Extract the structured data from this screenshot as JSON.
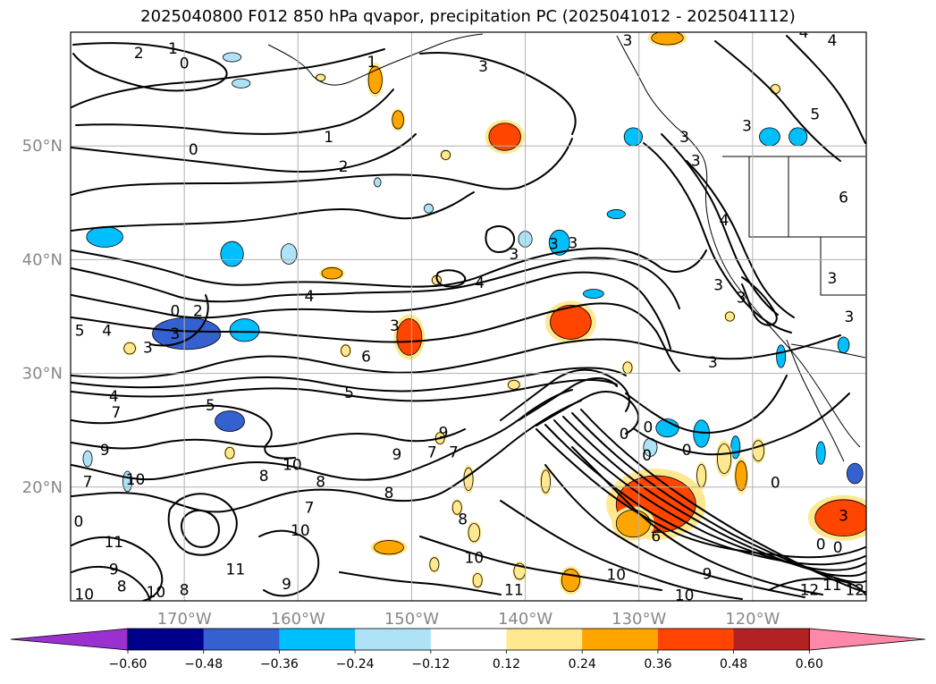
{
  "title": "2025040800 F012 850 hPa qvapor, precipitation PC (2025041012 - 2025041112)",
  "chart_data": {
    "type": "map-contour",
    "title": "2025040800 F012 850 hPa qvapor, precipitation PC (2025041012 - 2025041112)",
    "variables": [
      "850 hPa qvapor",
      "precipitation PC"
    ],
    "lon_range": [
      180,
      110
    ],
    "lat_range": [
      10,
      60
    ],
    "grid": true,
    "x_ticks": [
      "170°W",
      "160°W",
      "150°W",
      "140°W",
      "130°W",
      "120°W"
    ],
    "x_tick_values": [
      -170,
      -160,
      -150,
      -140,
      -130,
      -120
    ],
    "y_ticks": [
      "20°N",
      "30°N",
      "40°N",
      "50°N"
    ],
    "y_tick_values": [
      20,
      30,
      40,
      50
    ],
    "colorbar": {
      "orientation": "horizontal",
      "extend": "both",
      "levels": [
        -0.6,
        -0.48,
        -0.36,
        -0.24,
        -0.12,
        0.12,
        0.24,
        0.36,
        0.48,
        0.6
      ],
      "tick_labels": [
        "−0.60",
        "−0.48",
        "−0.36",
        "−0.24",
        "−0.12",
        "0.12",
        "0.24",
        "0.36",
        "0.48",
        "0.60"
      ],
      "colors": [
        "#9b30d0",
        "#00008b",
        "#3560d0",
        "#00bfff",
        "#aee3f7",
        "#ffffff",
        "#ffe890",
        "#ffa500",
        "#ff4500",
        "#b22222",
        "#ff88a8"
      ]
    },
    "contour_labels": [
      {
        "text": "2",
        "lon": -174.0,
        "lat": 58.2
      },
      {
        "text": "1",
        "lon": -171.0,
        "lat": 58.6
      },
      {
        "text": "0",
        "lon": -170.0,
        "lat": 57.3
      },
      {
        "text": "1",
        "lon": -153.5,
        "lat": 57.4
      },
      {
        "text": "3",
        "lon": -143.7,
        "lat": 57.0
      },
      {
        "text": "1",
        "lon": -157.3,
        "lat": 50.8
      },
      {
        "text": "0",
        "lon": -169.2,
        "lat": 49.7
      },
      {
        "text": "2",
        "lon": -156.0,
        "lat": 48.2
      },
      {
        "text": "3",
        "lon": -126.0,
        "lat": 50.8
      },
      {
        "text": "3",
        "lon": -125.0,
        "lat": 48.7
      },
      {
        "text": "3",
        "lon": -120.5,
        "lat": 51.8
      },
      {
        "text": "3",
        "lon": -131.0,
        "lat": 59.3
      },
      {
        "text": "4",
        "lon": -115.5,
        "lat": 60.0
      },
      {
        "text": "4",
        "lon": -113.0,
        "lat": 59.3
      },
      {
        "text": "5",
        "lon": -114.5,
        "lat": 52.8
      },
      {
        "text": "6",
        "lon": -112.0,
        "lat": 45.5
      },
      {
        "text": "4",
        "lon": -122.5,
        "lat": 43.5
      },
      {
        "text": "3",
        "lon": -135.8,
        "lat": 41.5
      },
      {
        "text": "3",
        "lon": -137.5,
        "lat": 41.4
      },
      {
        "text": "3",
        "lon": -141.0,
        "lat": 40.5
      },
      {
        "text": "4",
        "lon": -144.0,
        "lat": 38.0
      },
      {
        "text": "3",
        "lon": -123.0,
        "lat": 37.8
      },
      {
        "text": "3",
        "lon": -121.0,
        "lat": 36.7
      },
      {
        "text": "3",
        "lon": -113.0,
        "lat": 38.4
      },
      {
        "text": "3",
        "lon": -111.5,
        "lat": 35.0
      },
      {
        "text": "4",
        "lon": -159.0,
        "lat": 36.8
      },
      {
        "text": "2",
        "lon": -168.8,
        "lat": 35.5
      },
      {
        "text": "0",
        "lon": -170.8,
        "lat": 35.5
      },
      {
        "text": "5",
        "lon": -179.2,
        "lat": 33.8
      },
      {
        "text": "4",
        "lon": -176.8,
        "lat": 33.8
      },
      {
        "text": "3",
        "lon": -173.2,
        "lat": 32.3
      },
      {
        "text": "3",
        "lon": -170.8,
        "lat": 33.5
      },
      {
        "text": "3",
        "lon": -151.5,
        "lat": 34.2
      },
      {
        "text": "6",
        "lon": -154.0,
        "lat": 31.5
      },
      {
        "text": "3",
        "lon": -123.5,
        "lat": 31.0
      },
      {
        "text": "5",
        "lon": -155.5,
        "lat": 28.3
      },
      {
        "text": "5",
        "lon": -167.7,
        "lat": 27.2
      },
      {
        "text": "4",
        "lon": -176.2,
        "lat": 28.0
      },
      {
        "text": "7",
        "lon": -176.0,
        "lat": 26.6
      },
      {
        "text": "0",
        "lon": -131.3,
        "lat": 24.7
      },
      {
        "text": "0",
        "lon": -129.2,
        "lat": 25.3
      },
      {
        "text": "0",
        "lon": -125.8,
        "lat": 23.3
      },
      {
        "text": "0",
        "lon": -129.3,
        "lat": 22.8
      },
      {
        "text": "0",
        "lon": -118.0,
        "lat": 20.4
      },
      {
        "text": "9",
        "lon": -177.0,
        "lat": 23.3
      },
      {
        "text": "7",
        "lon": -178.5,
        "lat": 20.5
      },
      {
        "text": "10",
        "lon": -174.3,
        "lat": 20.7
      },
      {
        "text": "8",
        "lon": -163.0,
        "lat": 21.0
      },
      {
        "text": "10",
        "lon": -160.5,
        "lat": 22.0
      },
      {
        "text": "8",
        "lon": -158.0,
        "lat": 20.5
      },
      {
        "text": "7",
        "lon": -159.0,
        "lat": 18.2
      },
      {
        "text": "9",
        "lon": -151.3,
        "lat": 22.9
      },
      {
        "text": "9",
        "lon": -147.2,
        "lat": 24.8
      },
      {
        "text": "7",
        "lon": -148.2,
        "lat": 23.1
      },
      {
        "text": "7",
        "lon": -146.3,
        "lat": 23.1
      },
      {
        "text": "8",
        "lon": -152.0,
        "lat": 19.5
      },
      {
        "text": "8",
        "lon": -145.5,
        "lat": 17.2
      },
      {
        "text": "10",
        "lon": -159.8,
        "lat": 16.2
      },
      {
        "text": "11",
        "lon": -176.2,
        "lat": 15.2
      },
      {
        "text": "0",
        "lon": -179.3,
        "lat": 17.0
      },
      {
        "text": "9",
        "lon": -176.2,
        "lat": 12.8
      },
      {
        "text": "10",
        "lon": -178.8,
        "lat": 10.6
      },
      {
        "text": "8",
        "lon": -175.5,
        "lat": 11.3
      },
      {
        "text": "10",
        "lon": -172.5,
        "lat": 10.8
      },
      {
        "text": "8",
        "lon": -170.0,
        "lat": 11.0
      },
      {
        "text": "11",
        "lon": -165.5,
        "lat": 12.8
      },
      {
        "text": "9",
        "lon": -161.0,
        "lat": 11.5
      },
      {
        "text": "10",
        "lon": -144.5,
        "lat": 13.8
      },
      {
        "text": "11",
        "lon": -141.0,
        "lat": 11.0
      },
      {
        "text": "10",
        "lon": -132.0,
        "lat": 12.3
      },
      {
        "text": "10",
        "lon": -126.0,
        "lat": 10.5
      },
      {
        "text": "9",
        "lon": -124.0,
        "lat": 12.4
      },
      {
        "text": "12",
        "lon": -115.0,
        "lat": 11.0
      },
      {
        "text": "11",
        "lon": -113.0,
        "lat": 11.4
      },
      {
        "text": "12",
        "lon": -111.0,
        "lat": 11.0
      },
      {
        "text": "0",
        "lon": -114.0,
        "lat": 15.0
      },
      {
        "text": "0",
        "lon": -112.5,
        "lat": 14.7
      },
      {
        "text": "6",
        "lon": -128.5,
        "lat": 15.7
      },
      {
        "text": "3",
        "lon": -112.0,
        "lat": 17.5
      }
    ],
    "precip_areas": [
      {
        "lon": -169.8,
        "lat": 33.5,
        "value": -0.48,
        "rx": 3.0,
        "ry": 1.4
      },
      {
        "lon": -164.7,
        "lat": 33.8,
        "value": -0.36,
        "rx": 1.3,
        "ry": 1.0
      },
      {
        "lon": -177.0,
        "lat": 42.0,
        "value": -0.36,
        "rx": 1.6,
        "ry": 0.9
      },
      {
        "lon": -165.8,
        "lat": 40.5,
        "value": -0.36,
        "rx": 1.0,
        "ry": 1.1
      },
      {
        "lon": -160.8,
        "lat": 40.5,
        "value": -0.24,
        "rx": 0.7,
        "ry": 0.9
      },
      {
        "lon": -166.0,
        "lat": 25.8,
        "value": -0.48,
        "rx": 1.3,
        "ry": 0.9
      },
      {
        "lon": -137.0,
        "lat": 41.5,
        "value": -0.36,
        "rx": 0.9,
        "ry": 1.1
      },
      {
        "lon": -140.0,
        "lat": 41.8,
        "value": -0.24,
        "rx": 0.6,
        "ry": 0.7
      },
      {
        "lon": -134.0,
        "lat": 37.0,
        "value": -0.36,
        "rx": 0.9,
        "ry": 0.4
      },
      {
        "lon": -132.0,
        "lat": 44.0,
        "value": -0.36,
        "rx": 0.8,
        "ry": 0.4
      },
      {
        "lon": -165.8,
        "lat": 57.8,
        "value": -0.24,
        "rx": 0.8,
        "ry": 0.4
      },
      {
        "lon": -165.0,
        "lat": 55.5,
        "value": -0.24,
        "rx": 0.8,
        "ry": 0.4
      },
      {
        "lon": -130.5,
        "lat": 50.8,
        "value": -0.36,
        "rx": 0.8,
        "ry": 0.8
      },
      {
        "lon": -118.5,
        "lat": 50.8,
        "value": -0.36,
        "rx": 0.9,
        "ry": 0.8
      },
      {
        "lon": -116.0,
        "lat": 50.8,
        "value": -0.36,
        "rx": 0.8,
        "ry": 0.8
      },
      {
        "lon": -124.5,
        "lat": 24.7,
        "value": -0.36,
        "rx": 0.7,
        "ry": 1.2
      },
      {
        "lon": -127.5,
        "lat": 25.2,
        "value": -0.36,
        "rx": 1.0,
        "ry": 0.8
      },
      {
        "lon": -129.0,
        "lat": 23.5,
        "value": -0.24,
        "rx": 0.6,
        "ry": 0.8
      },
      {
        "lon": -121.5,
        "lat": 23.5,
        "value": -0.36,
        "rx": 0.4,
        "ry": 1.0
      },
      {
        "lon": -114.0,
        "lat": 23.0,
        "value": -0.36,
        "rx": 0.4,
        "ry": 1.0
      },
      {
        "lon": -111.0,
        "lat": 21.2,
        "value": -0.48,
        "rx": 0.7,
        "ry": 0.9
      },
      {
        "lon": -178.5,
        "lat": 22.5,
        "value": -0.24,
        "rx": 0.4,
        "ry": 0.7
      },
      {
        "lon": -175.0,
        "lat": 20.5,
        "value": -0.24,
        "rx": 0.4,
        "ry": 0.9
      },
      {
        "lon": -112.0,
        "lat": 32.5,
        "value": -0.36,
        "rx": 0.5,
        "ry": 0.7
      },
      {
        "lon": -117.5,
        "lat": 31.5,
        "value": -0.36,
        "rx": 0.4,
        "ry": 1.0
      },
      {
        "lon": -153.0,
        "lat": 46.8,
        "value": -0.24,
        "rx": 0.3,
        "ry": 0.4
      },
      {
        "lon": -148.5,
        "lat": 44.5,
        "value": -0.24,
        "rx": 0.4,
        "ry": 0.4
      },
      {
        "lon": -141.8,
        "lat": 50.8,
        "value": 0.36,
        "rx": 1.4,
        "ry": 1.2
      },
      {
        "lon": -136.0,
        "lat": 34.5,
        "value": 0.36,
        "rx": 1.8,
        "ry": 1.5
      },
      {
        "lon": -150.2,
        "lat": 33.2,
        "value": 0.36,
        "rx": 1.1,
        "ry": 1.6
      },
      {
        "lon": -153.2,
        "lat": 55.8,
        "value": 0.24,
        "rx": 0.6,
        "ry": 1.2
      },
      {
        "lon": -151.2,
        "lat": 52.3,
        "value": 0.24,
        "rx": 0.5,
        "ry": 0.8
      },
      {
        "lon": -157.0,
        "lat": 38.8,
        "value": 0.24,
        "rx": 0.9,
        "ry": 0.5
      },
      {
        "lon": -127.5,
        "lat": 59.5,
        "value": 0.24,
        "rx": 1.4,
        "ry": 0.6
      },
      {
        "lon": -128.5,
        "lat": 18.5,
        "value": 0.36,
        "rx": 3.5,
        "ry": 2.5
      },
      {
        "lon": -130.5,
        "lat": 16.8,
        "value": 0.24,
        "rx": 1.5,
        "ry": 1.2
      },
      {
        "lon": -112.0,
        "lat": 17.3,
        "value": 0.36,
        "rx": 2.5,
        "ry": 1.6
      },
      {
        "lon": -152.0,
        "lat": 14.7,
        "value": 0.24,
        "rx": 1.3,
        "ry": 0.6
      },
      {
        "lon": -136.0,
        "lat": 11.8,
        "value": 0.24,
        "rx": 0.8,
        "ry": 1.0
      },
      {
        "lon": -121.0,
        "lat": 21.0,
        "value": 0.24,
        "rx": 0.5,
        "ry": 1.3
      },
      {
        "lon": -122.5,
        "lat": 22.5,
        "value": 0.12,
        "rx": 0.6,
        "ry": 1.3
      },
      {
        "lon": -124.5,
        "lat": 21.0,
        "value": 0.12,
        "rx": 0.4,
        "ry": 1.0
      },
      {
        "lon": -119.5,
        "lat": 23.2,
        "value": 0.12,
        "rx": 0.5,
        "ry": 0.9
      },
      {
        "lon": -145.0,
        "lat": 20.7,
        "value": 0.12,
        "rx": 0.4,
        "ry": 1.0
      },
      {
        "lon": -138.2,
        "lat": 20.5,
        "value": 0.12,
        "rx": 0.4,
        "ry": 1.0
      },
      {
        "lon": -140.5,
        "lat": 12.6,
        "value": 0.12,
        "rx": 0.5,
        "ry": 0.7
      },
      {
        "lon": -144.2,
        "lat": 11.8,
        "value": 0.12,
        "rx": 0.4,
        "ry": 0.6
      },
      {
        "lon": -148.0,
        "lat": 13.2,
        "value": 0.12,
        "rx": 0.4,
        "ry": 0.6
      },
      {
        "lon": -141.0,
        "lat": 29.0,
        "value": 0.12,
        "rx": 0.5,
        "ry": 0.4
      },
      {
        "lon": -147.5,
        "lat": 24.3,
        "value": 0.12,
        "rx": 0.4,
        "ry": 0.5
      },
      {
        "lon": -166.0,
        "lat": 23.0,
        "value": 0.12,
        "rx": 0.4,
        "ry": 0.5
      },
      {
        "lon": -174.8,
        "lat": 32.2,
        "value": 0.12,
        "rx": 0.5,
        "ry": 0.5
      },
      {
        "lon": -155.8,
        "lat": 32.0,
        "value": 0.12,
        "rx": 0.4,
        "ry": 0.5
      },
      {
        "lon": -147.8,
        "lat": 38.2,
        "value": 0.12,
        "rx": 0.4,
        "ry": 0.4
      },
      {
        "lon": -131.0,
        "lat": 30.5,
        "value": 0.12,
        "rx": 0.4,
        "ry": 0.5
      },
      {
        "lon": -122.0,
        "lat": 35.0,
        "value": 0.12,
        "rx": 0.4,
        "ry": 0.4
      },
      {
        "lon": -147.0,
        "lat": 49.2,
        "value": 0.12,
        "rx": 0.4,
        "ry": 0.4
      },
      {
        "lon": -158.0,
        "lat": 56.0,
        "value": 0.12,
        "rx": 0.4,
        "ry": 0.3
      },
      {
        "lon": -118.0,
        "lat": 55.0,
        "value": 0.12,
        "rx": 0.4,
        "ry": 0.4
      },
      {
        "lon": -144.5,
        "lat": 16.0,
        "value": 0.12,
        "rx": 0.5,
        "ry": 0.8
      },
      {
        "lon": -146.0,
        "lat": 18.2,
        "value": 0.12,
        "rx": 0.4,
        "ry": 0.6
      }
    ]
  }
}
